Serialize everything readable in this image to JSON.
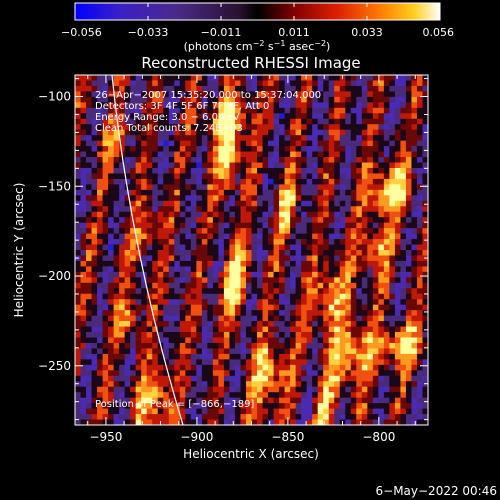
{
  "colorbar": {
    "ticks": [
      "−0.056",
      "−0.033",
      "−0.011",
      "0.011",
      "0.033",
      "0.056"
    ],
    "unit_label": "(photons cm",
    "unit_exp1": "−2",
    "unit_mid": " s",
    "unit_exp2": "−1",
    "unit_mid2": " asec",
    "unit_exp3": "−2",
    "unit_end": ")"
  },
  "title": "Reconstructed RHESSI Image",
  "annotations": {
    "time": "26−Apr−2007 15:35:20.000 to 15:37:04.000",
    "detectors": "Detectors: 3F 4F 5F 6F 7F 8F, Att 0",
    "energy": "Energy Range: 3.0 − 6.0 keV",
    "clean": "Clean     Total counts: 7.24E+03",
    "peak": "Position of Peak = [−866,−189]"
  },
  "axes": {
    "xlabel": "Heliocentric X (arcsec)",
    "ylabel": "Heliocentric Y (arcsec)",
    "x_ticks": [
      {
        "value": -950,
        "label": "−950"
      },
      {
        "value": -900,
        "label": "−900"
      },
      {
        "value": -850,
        "label": "−850"
      },
      {
        "value": -800,
        "label": "−800"
      }
    ],
    "y_ticks": [
      {
        "value": -100,
        "label": "−100"
      },
      {
        "value": -150,
        "label": "−150"
      },
      {
        "value": -200,
        "label": "−200"
      },
      {
        "value": -250,
        "label": "−250"
      }
    ],
    "xlim": [
      -967,
      -773
    ],
    "ylim": [
      -283,
      -88
    ]
  },
  "peak": {
    "x": -866,
    "y": -189
  },
  "footer": {
    "date": "6−May−2022 00:46"
  },
  "colors": {
    "background": "#000000",
    "foreground": "#ffffff"
  }
}
